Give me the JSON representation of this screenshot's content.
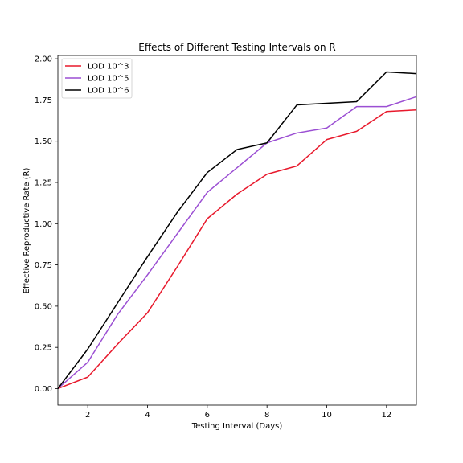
{
  "chart_data": {
    "type": "line",
    "title": "Effects of Different Testing Intervals on R",
    "xlabel": "Testing Interval (Days)",
    "ylabel": "Effective Reproductive Rate (R)",
    "xlim": [
      1,
      13
    ],
    "ylim": [
      -0.1,
      2.02
    ],
    "xticks": [
      2,
      4,
      6,
      8,
      10,
      12
    ],
    "xtick_labels": [
      "2",
      "4",
      "6",
      "8",
      "10",
      "12"
    ],
    "yticks": [
      0.0,
      0.25,
      0.5,
      0.75,
      1.0,
      1.25,
      1.5,
      1.75,
      2.0
    ],
    "ytick_labels": [
      "0.00",
      "0.25",
      "0.50",
      "0.75",
      "1.00",
      "1.25",
      "1.50",
      "1.75",
      "2.00"
    ],
    "grid": false,
    "legend_position": "top-left",
    "x": [
      1,
      2,
      3,
      4,
      5,
      6,
      7,
      8,
      9,
      10,
      11,
      12,
      13
    ],
    "series": [
      {
        "name": "LOD 10^3",
        "color": "#e8192c",
        "values": [
          0.0,
          0.07,
          0.27,
          0.46,
          0.74,
          1.03,
          1.18,
          1.3,
          1.35,
          1.51,
          1.56,
          1.68,
          1.69
        ]
      },
      {
        "name": "LOD 10^5",
        "color": "#9b4fd3",
        "values": [
          0.0,
          0.16,
          0.45,
          0.69,
          0.94,
          1.19,
          1.34,
          1.49,
          1.55,
          1.58,
          1.71,
          1.71,
          1.77
        ]
      },
      {
        "name": "LOD 10^6",
        "color": "#000000",
        "values": [
          0.0,
          0.24,
          0.52,
          0.8,
          1.07,
          1.31,
          1.45,
          1.49,
          1.72,
          1.73,
          1.74,
          1.92,
          1.91
        ]
      }
    ]
  }
}
